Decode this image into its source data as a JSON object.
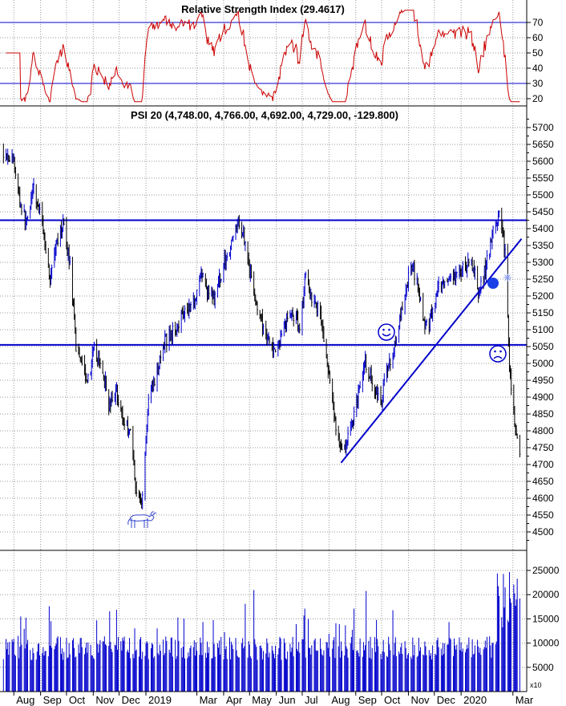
{
  "chart_data": [
    {
      "panel": "rsi",
      "type": "line",
      "title": "Relative Strength Index (29.4617)",
      "y_ticks": [
        20,
        30,
        40,
        50,
        60,
        70
      ],
      "ylim": [
        16,
        80
      ],
      "reference_lines": [
        30,
        70
      ],
      "line_color": "#cc0000",
      "grid": true,
      "axis_side": "right"
    },
    {
      "panel": "price",
      "type": "bar",
      "title": "PSI 20 (4,748.00, 4,766.00, 4,692.00, 4,729.00, -129.800)",
      "y_ticks": [
        4500,
        4550,
        4600,
        4650,
        4700,
        4750,
        4800,
        4850,
        4900,
        4950,
        5000,
        5050,
        5100,
        5150,
        5200,
        5250,
        5300,
        5350,
        5400,
        5450,
        5500,
        5550,
        5600,
        5650,
        5700
      ],
      "ylim": [
        4450,
        5740
      ],
      "horizontal_lines": [
        5425,
        5055
      ],
      "trendline": {
        "from": {
          "date": "2019-08-15",
          "value": 4705
        },
        "to": {
          "date": "2020-03-11",
          "value": 5370
        }
      },
      "annotations": [
        "bull-at-low",
        "smiley-2019-oct",
        "frown-2020-feb",
        "dot-2020-feb"
      ],
      "series_colors": {
        "up": "#0000cc",
        "down": "#000000"
      },
      "grid": true,
      "axis_side": "right",
      "points": [
        [
          "2018-07-20",
          5630
        ],
        [
          "2018-08-01",
          5600
        ],
        [
          "2018-08-08",
          5480
        ],
        [
          "2018-08-15",
          5420
        ],
        [
          "2018-08-24",
          5520
        ],
        [
          "2018-09-04",
          5400
        ],
        [
          "2018-09-12",
          5250
        ],
        [
          "2018-09-19",
          5340
        ],
        [
          "2018-09-27",
          5410
        ],
        [
          "2018-10-05",
          5300
        ],
        [
          "2018-10-12",
          5050
        ],
        [
          "2018-10-19",
          5010
        ],
        [
          "2018-10-26",
          4950
        ],
        [
          "2018-11-02",
          5040
        ],
        [
          "2018-11-12",
          4980
        ],
        [
          "2018-11-20",
          4870
        ],
        [
          "2018-11-28",
          4920
        ],
        [
          "2018-12-06",
          4830
        ],
        [
          "2018-12-14",
          4800
        ],
        [
          "2018-12-21",
          4620
        ],
        [
          "2018-12-27",
          4580
        ],
        [
          "2019-01-04",
          4890
        ],
        [
          "2019-01-14",
          4980
        ],
        [
          "2019-01-24",
          5070
        ],
        [
          "2019-02-04",
          5100
        ],
        [
          "2019-02-14",
          5160
        ],
        [
          "2019-02-25",
          5180
        ],
        [
          "2019-03-06",
          5270
        ],
        [
          "2019-03-14",
          5210
        ],
        [
          "2019-03-22",
          5190
        ],
        [
          "2019-04-01",
          5300
        ],
        [
          "2019-04-10",
          5350
        ],
        [
          "2019-04-16",
          5420
        ],
        [
          "2019-04-24",
          5390
        ],
        [
          "2019-05-03",
          5250
        ],
        [
          "2019-05-13",
          5130
        ],
        [
          "2019-05-22",
          5080
        ],
        [
          "2019-05-31",
          5020
        ],
        [
          "2019-06-10",
          5120
        ],
        [
          "2019-06-20",
          5150
        ],
        [
          "2019-06-28",
          5110
        ],
        [
          "2019-07-05",
          5260
        ],
        [
          "2019-07-12",
          5200
        ],
        [
          "2019-07-22",
          5150
        ],
        [
          "2019-07-31",
          4970
        ],
        [
          "2019-08-07",
          4850
        ],
        [
          "2019-08-15",
          4730
        ],
        [
          "2019-08-26",
          4800
        ],
        [
          "2019-09-04",
          4920
        ],
        [
          "2019-09-12",
          5000
        ],
        [
          "2019-09-20",
          4950
        ],
        [
          "2019-09-30",
          4880
        ],
        [
          "2019-10-08",
          4990
        ],
        [
          "2019-10-18",
          5070
        ],
        [
          "2019-10-28",
          5200
        ],
        [
          "2019-11-04",
          5300
        ],
        [
          "2019-11-12",
          5240
        ],
        [
          "2019-11-20",
          5100
        ],
        [
          "2019-11-29",
          5150
        ],
        [
          "2019-12-06",
          5220
        ],
        [
          "2019-12-16",
          5230
        ],
        [
          "2019-12-24",
          5250
        ],
        [
          "2020-01-03",
          5280
        ],
        [
          "2020-01-13",
          5300
        ],
        [
          "2020-01-22",
          5210
        ],
        [
          "2020-01-31",
          5300
        ],
        [
          "2020-02-07",
          5390
        ],
        [
          "2020-02-14",
          5440
        ],
        [
          "2020-02-21",
          5330
        ],
        [
          "2020-02-26",
          5000
        ],
        [
          "2020-03-02",
          4850
        ],
        [
          "2020-03-09",
          4729
        ]
      ]
    },
    {
      "panel": "volume",
      "type": "bar",
      "y_ticks": [
        5000,
        10000,
        15000,
        20000,
        25000
      ],
      "ylim": [
        0,
        27500
      ],
      "multiplier_label": "x10",
      "bar_color": "#0000cc",
      "axis_side": "right"
    }
  ],
  "x_axis": {
    "labels": [
      {
        "label": "Aug",
        "date": "2018-08-01"
      },
      {
        "label": "Sep",
        "date": "2018-09-01"
      },
      {
        "label": "Oct",
        "date": "2018-10-01"
      },
      {
        "label": "Nov",
        "date": "2018-11-01"
      },
      {
        "label": "Dec",
        "date": "2018-12-01"
      },
      {
        "label": "2019",
        "date": "2019-01-01"
      },
      {
        "label": "Mar",
        "date": "2019-03-01"
      },
      {
        "label": "Apr",
        "date": "2019-04-01"
      },
      {
        "label": "May",
        "date": "2019-05-01"
      },
      {
        "label": "Jun",
        "date": "2019-06-01"
      },
      {
        "label": "Jul",
        "date": "2019-07-01"
      },
      {
        "label": "Aug",
        "date": "2019-08-01"
      },
      {
        "label": "Sep",
        "date": "2019-09-01"
      },
      {
        "label": "Oct",
        "date": "2019-10-01"
      },
      {
        "label": "Nov",
        "date": "2019-11-01"
      },
      {
        "label": "Dec",
        "date": "2019-12-01"
      },
      {
        "label": "2020",
        "date": "2020-01-01"
      },
      {
        "label": "Mar",
        "date": "2020-03-01"
      }
    ],
    "range": [
      "2018-07-16",
      "2020-03-17"
    ]
  }
}
